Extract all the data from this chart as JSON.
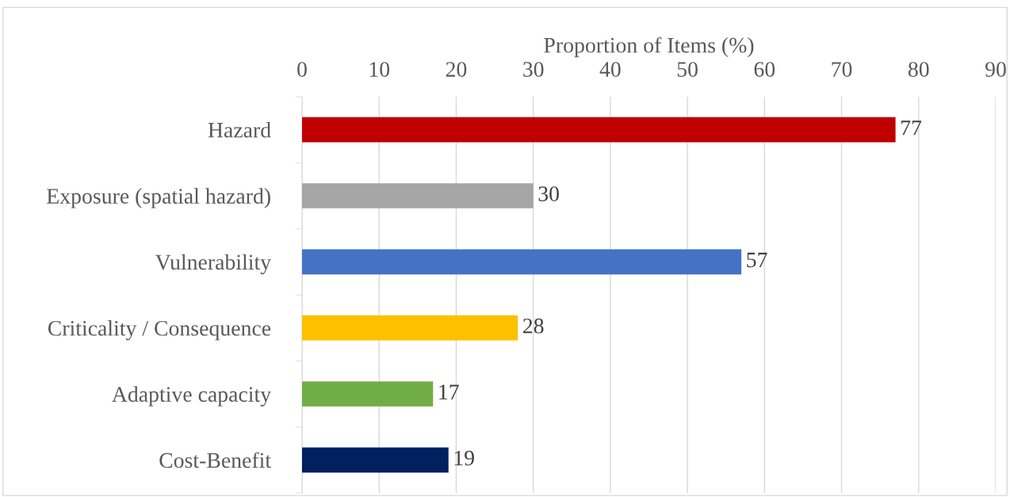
{
  "chart_data": {
    "type": "bar",
    "orientation": "horizontal",
    "xlabel": "Proportion of Items (%)",
    "categories": [
      "Hazard",
      "Exposure (spatial hazard)",
      "Vulnerability",
      "Criticality / Consequence",
      "Adaptive capacity",
      "Cost-Benefit"
    ],
    "values": [
      77,
      30,
      57,
      28,
      17,
      19
    ],
    "colors": [
      "#c00000",
      "#a5a5a5",
      "#4472c4",
      "#ffc000",
      "#70ad47",
      "#002060"
    ],
    "xlim": [
      0,
      90
    ],
    "xticks": [
      0,
      10,
      20,
      30,
      40,
      50,
      60,
      70,
      80,
      90
    ],
    "grid": "x",
    "data_labels": true,
    "legend": false
  }
}
